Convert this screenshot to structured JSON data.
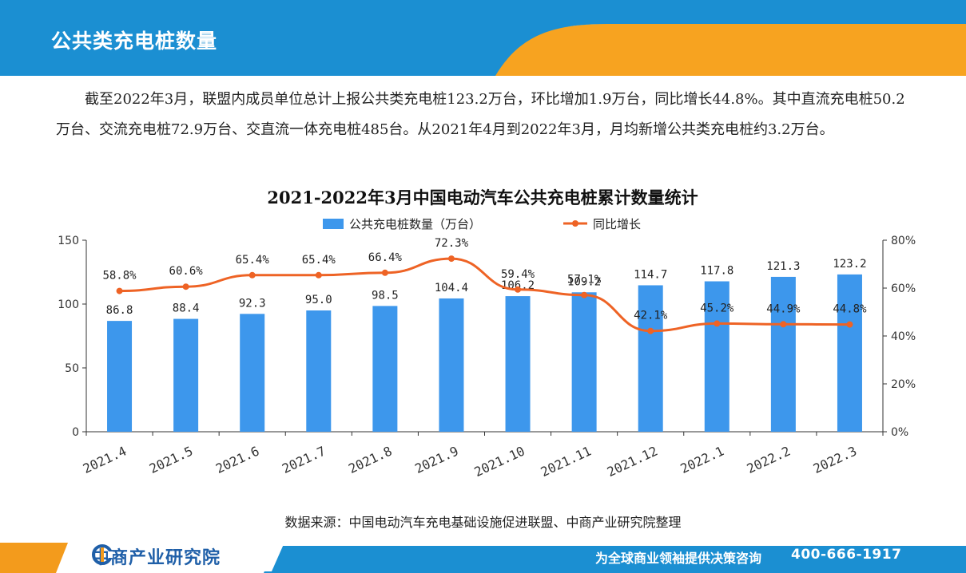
{
  "header": {
    "title": "公共类充电桩数量"
  },
  "summary": "截至2022年3月，联盟内成员单位总计上报公共类充电桩123.2万台，环比增加1.9万台，同比增长44.8%。其中直流充电桩50.2万台、交流充电桩72.9万台、交直流一体充电桩485台。从2021年4月到2022年3月，月均新增公共类充电桩约3.2万台。",
  "chart_data": {
    "type": "bar",
    "title": "2021-2022年3月中国电动汽车公共充电桩累计数量统计",
    "categories": [
      "2021.4",
      "2021.5",
      "2021.6",
      "2021.7",
      "2021.8",
      "2021.9",
      "2021.10",
      "2021.11",
      "2021.12",
      "2022.1",
      "2022.2",
      "2022.3"
    ],
    "series": [
      {
        "name": "公共充电桩数量（万台）",
        "type": "bar",
        "axis": "left",
        "values": [
          86.8,
          88.4,
          92.3,
          95.0,
          98.5,
          104.4,
          106.2,
          109.2,
          114.7,
          117.8,
          121.3,
          123.2
        ],
        "labels": [
          "86.8",
          "88.4",
          "92.3",
          "95.0",
          "98.5",
          "104.4",
          "106.2",
          "109.2",
          "114.7",
          "117.8",
          "121.3",
          "123.2"
        ]
      },
      {
        "name": "同比增长",
        "type": "line",
        "axis": "right",
        "values": [
          58.8,
          60.6,
          65.4,
          65.4,
          66.4,
          72.3,
          59.4,
          57.1,
          42.1,
          45.2,
          44.9,
          44.8
        ],
        "labels": [
          "58.8%",
          "60.6%",
          "65.4%",
          "65.4%",
          "66.4%",
          "72.3%",
          "59.4%",
          "57.1%",
          "42.1%",
          "45.2%",
          "44.9%",
          "44.8%"
        ]
      }
    ],
    "ylim": [
      0,
      150
    ],
    "y_ticks": [
      "0",
      "50",
      "100",
      "150"
    ],
    "y2lim": [
      0,
      80
    ],
    "y2_ticks": [
      "0%",
      "20%",
      "40%",
      "60%",
      "80%"
    ],
    "legend_position": "top-center",
    "grid": false,
    "colors": {
      "bar": "#3d97ec",
      "line": "#ee6325"
    }
  },
  "source": "数据来源：中国电动汽车充电基础设施促进联盟、中商产业研究院整理",
  "footer": {
    "logo_text": "中商产业研究院",
    "slogan": "为全球商业领袖提供决策咨询",
    "phone": "400-666-1917"
  },
  "colors": {
    "header_blue": "#1b8fd2",
    "header_orange": "#f7a320",
    "footer_blue": "#1b8fd2",
    "footer_orange": "#f39b1c"
  }
}
